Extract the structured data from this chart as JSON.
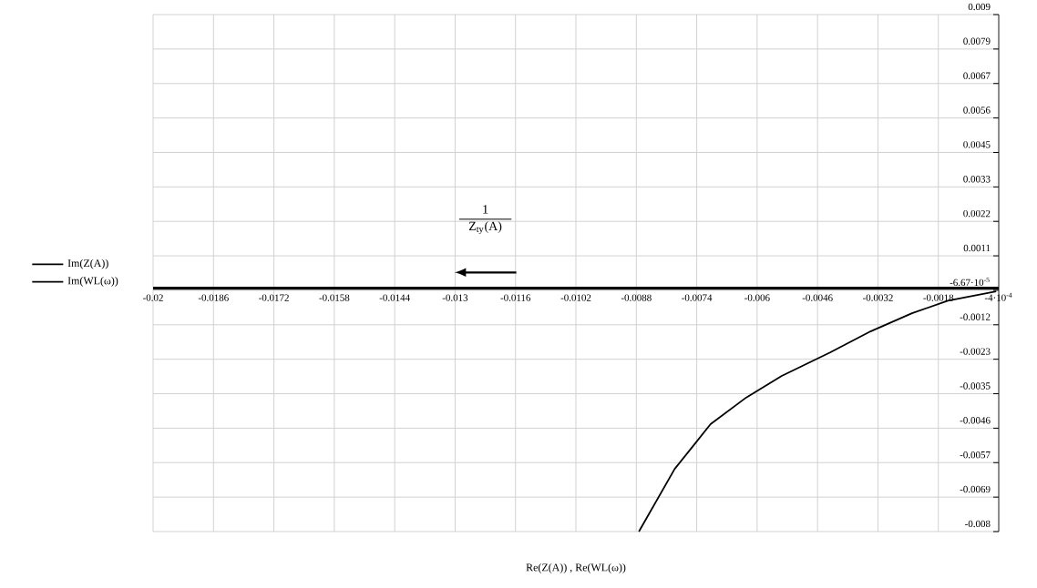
{
  "chart_data": {
    "type": "line",
    "xlabel": "Re(Z(A)) , Re(WL(ω))",
    "annotations": [
      "1",
      "Z$_{ty}$(A)"
    ],
    "series": [
      {
        "name": "Im(Z(A))",
        "color": "#000000",
        "x": [
          -0.00874,
          -0.00791,
          -0.00708,
          -0.00625,
          -0.00543,
          -0.00431,
          -0.00336,
          -0.00241,
          -0.00158,
          -0.00046
        ],
        "values": [
          -0.008,
          -0.00594,
          -0.00447,
          -0.00359,
          -0.00288,
          -0.00211,
          -0.00141,
          -0.00082,
          -0.00041,
          -0.0001
        ]
      },
      {
        "name": "Im(WL(ω))",
        "color": "#000000",
        "x": [
          -0.02,
          -0.0004
        ],
        "values": [
          0,
          0
        ]
      }
    ],
    "xlim": [
      -0.02,
      -0.0004
    ],
    "ylim": [
      -0.008,
      0.009
    ],
    "xticks": [
      -0.02,
      -0.0186,
      -0.0172,
      -0.0158,
      -0.0144,
      -0.013,
      -0.0116,
      -0.0102,
      -0.0088,
      -0.0074,
      -0.006,
      -0.0046,
      -0.0032,
      -0.0018,
      {
        "value": -0.0004,
        "label": "-4·10$^{-4}$"
      }
    ],
    "yticks": [
      -0.008,
      {
        "value": -0.006867,
        "label": "-0.0069"
      },
      {
        "value": -0.005733,
        "label": "-0.0057"
      },
      -0.0046,
      {
        "value": -0.003467,
        "label": "-0.0035"
      },
      {
        "value": -0.002333,
        "label": "-0.0023"
      },
      -0.0012,
      {
        "value": -6.67e-05,
        "label": "-6.67·10$^{-5}$"
      },
      {
        "value": 0.001067,
        "label": "0.0011"
      },
      0.0022,
      {
        "value": 0.003333,
        "label": "0.0033"
      },
      {
        "value": 0.004467,
        "label": "0.0045"
      },
      0.0056,
      {
        "value": 0.006733,
        "label": "0.0067"
      },
      {
        "value": 0.007867,
        "label": "0.0079"
      },
      0.009
    ],
    "grid": true,
    "legend": "left",
    "marker": "none",
    "line_style": "solid"
  }
}
